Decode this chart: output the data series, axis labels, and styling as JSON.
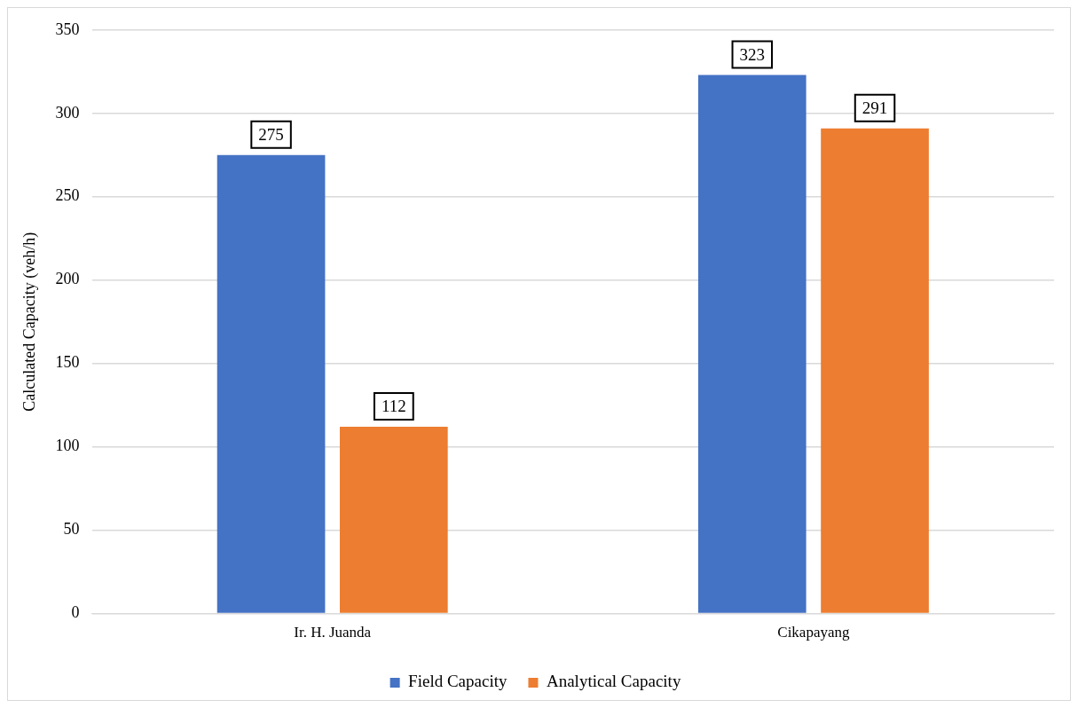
{
  "chart_data": {
    "type": "bar",
    "ylabel": "Calculated Capacity (veh/h)",
    "categories": [
      "Ir. H. Juanda",
      "Cikapayang"
    ],
    "series": [
      {
        "name": "Field Capacity",
        "color": "#4472c4",
        "values": [
          275,
          323
        ]
      },
      {
        "name": "Analytical Capacity",
        "color": "#ed7d31",
        "values": [
          112,
          291
        ]
      }
    ],
    "ylim": [
      0,
      350
    ],
    "yticks": [
      0,
      50,
      100,
      150,
      200,
      250,
      300,
      350
    ],
    "grid": "y",
    "legend": "bottom",
    "data_labels": true
  }
}
